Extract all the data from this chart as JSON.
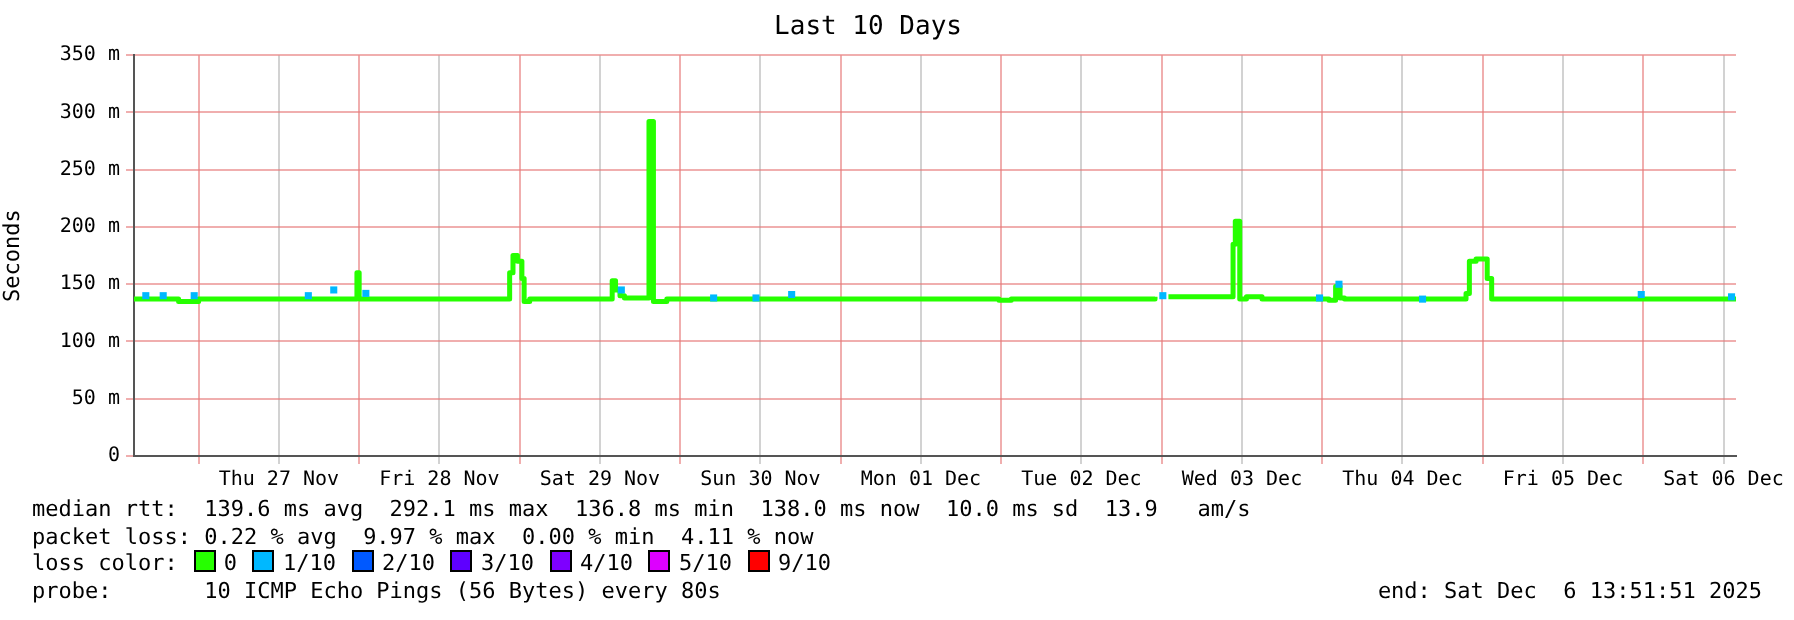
{
  "chart_data": {
    "type": "step",
    "title": "Last 10 Days",
    "ylabel": "Seconds",
    "legend_title": "loss color:",
    "legend": "bottom",
    "grid": true,
    "marker": "none",
    "xlim": [
      "2025-11-26T14:20",
      "2025-12-06T13:52"
    ],
    "xticks": [
      {
        "value": "2025-11-27T00:00",
        "label": null
      },
      {
        "value": "2025-11-27T12:00",
        "label": "Thu 27 Nov"
      },
      {
        "value": "2025-11-28T00:00",
        "label": null
      },
      {
        "value": "2025-11-28T12:00",
        "label": "Fri 28 Nov"
      },
      {
        "value": "2025-11-29T00:00",
        "label": null
      },
      {
        "value": "2025-11-29T12:00",
        "label": "Sat 29 Nov"
      },
      {
        "value": "2025-11-30T00:00",
        "label": null
      },
      {
        "value": "2025-11-30T12:00",
        "label": "Sun 30 Nov"
      },
      {
        "value": "2025-12-01T00:00",
        "label": null
      },
      {
        "value": "2025-12-01T12:00",
        "label": "Mon 01 Dec"
      },
      {
        "value": "2025-12-02T00:00",
        "label": null
      },
      {
        "value": "2025-12-02T12:00",
        "label": "Tue 02 Dec"
      },
      {
        "value": "2025-12-03T00:00",
        "label": null
      },
      {
        "value": "2025-12-03T12:00",
        "label": "Wed 03 Dec"
      },
      {
        "value": "2025-12-04T00:00",
        "label": null
      },
      {
        "value": "2025-12-04T12:00",
        "label": "Thu 04 Dec"
      },
      {
        "value": "2025-12-05T00:00",
        "label": null
      },
      {
        "value": "2025-12-05T12:00",
        "label": "Fri 05 Dec"
      },
      {
        "value": "2025-12-06T00:00",
        "label": null
      },
      {
        "value": "2025-12-06T12:00",
        "label": "Sat 06 Dec"
      }
    ],
    "ylim": [
      0,
      350
    ],
    "yticks": [
      0,
      {
        "value": 50,
        "label": "50 m"
      },
      {
        "value": 100,
        "label": "100 m"
      },
      {
        "value": 150,
        "label": "150 m"
      },
      {
        "value": 200,
        "label": "200 m"
      },
      {
        "value": 250,
        "label": "250 m"
      },
      {
        "value": 300,
        "label": "300 m"
      },
      {
        "value": 350,
        "label": "350 m"
      }
    ],
    "series": [
      {
        "name": "0",
        "color": "#26ff00",
        "x": [
          "2025-11-26T14:20",
          "2025-11-26T21:00",
          "2025-11-27T00:00",
          "2025-11-27T23:40",
          "2025-11-28T00:00",
          "2025-11-28T22:30",
          "2025-11-28T23:00",
          "2025-11-28T23:40",
          "2025-11-29T00:20",
          "2025-11-29T00:40",
          "2025-11-29T01:30",
          "2025-11-29T13:50",
          "2025-11-29T14:20",
          "2025-11-29T15:00",
          "2025-11-29T15:40",
          "2025-11-29T19:20",
          "2025-11-29T20:00",
          "2025-11-29T22:00",
          "2025-12-01T23:40",
          "2025-12-02T01:30",
          "2025-12-02T23:00",
          "2025-12-03T00:30",
          "2025-12-03T01:00",
          "2025-12-03T10:40",
          "2025-12-03T11:00",
          "2025-12-03T11:40",
          "2025-12-03T12:40",
          "2025-12-03T15:00",
          "2025-12-04T01:00",
          "2025-12-04T02:00",
          "2025-12-04T02:40",
          "2025-12-04T03:20",
          "2025-12-04T21:30",
          "2025-12-04T22:00",
          "2025-12-04T23:00",
          "2025-12-05T00:40",
          "2025-12-05T01:20",
          "2025-12-06T13:52"
        ],
        "values": [
          137,
          135,
          137,
          160,
          137,
          160,
          175,
          170,
          155,
          135,
          137,
          153,
          145,
          140,
          138,
          292,
          135,
          137,
          136,
          137,
          139,
          null,
          139,
          185,
          205,
          137,
          139,
          137,
          136,
          148,
          138,
          137,
          142,
          170,
          172,
          155,
          137,
          137
        ]
      },
      {
        "name": "1/10",
        "color": "#00b8ff",
        "type": "scatter",
        "marker": "square",
        "x": [
          "2025-11-26T16:06",
          "2025-11-26T18:42",
          "2025-11-26T23:20",
          "2025-11-27T16:24",
          "2025-11-27T20:12",
          "2025-11-28T01:00",
          "2025-11-29T15:12",
          "2025-11-30T05:00",
          "2025-11-30T11:20",
          "2025-11-30T16:40",
          "2025-12-03T00:10",
          "2025-12-03T23:36",
          "2025-12-04T02:30",
          "2025-12-04T15:00",
          "2025-12-05T23:42",
          "2025-12-06T13:12"
        ],
        "values": [
          140,
          140,
          140,
          140,
          145,
          142,
          145,
          138,
          138,
          141,
          140,
          138,
          150,
          137,
          141,
          139
        ]
      },
      {
        "name": "2/10",
        "color": "#0059ff",
        "type": "scatter"
      },
      {
        "name": "3/10",
        "color": "#5e00ff",
        "type": "scatter"
      },
      {
        "name": "4/10",
        "color": "#7e00ff",
        "type": "scatter"
      },
      {
        "name": "5/10",
        "color": "#dd00ff",
        "type": "scatter"
      },
      {
        "name": "9/10",
        "color": "#ff0000",
        "type": "scatter"
      }
    ],
    "annotations": [
      "median rtt:  139.6 ms avg  292.1 ms max  136.8 ms min  138.0 ms now  10.0 ms sd  13.9   am/s",
      "packet loss: 0.22 % avg  9.97 % max  0.00 % min  4.11 % now",
      "probe:       10 ICMP Echo Pings (56 Bytes) every 80s",
      "end: Sat Dec  6 13:51:51 2025"
    ]
  }
}
